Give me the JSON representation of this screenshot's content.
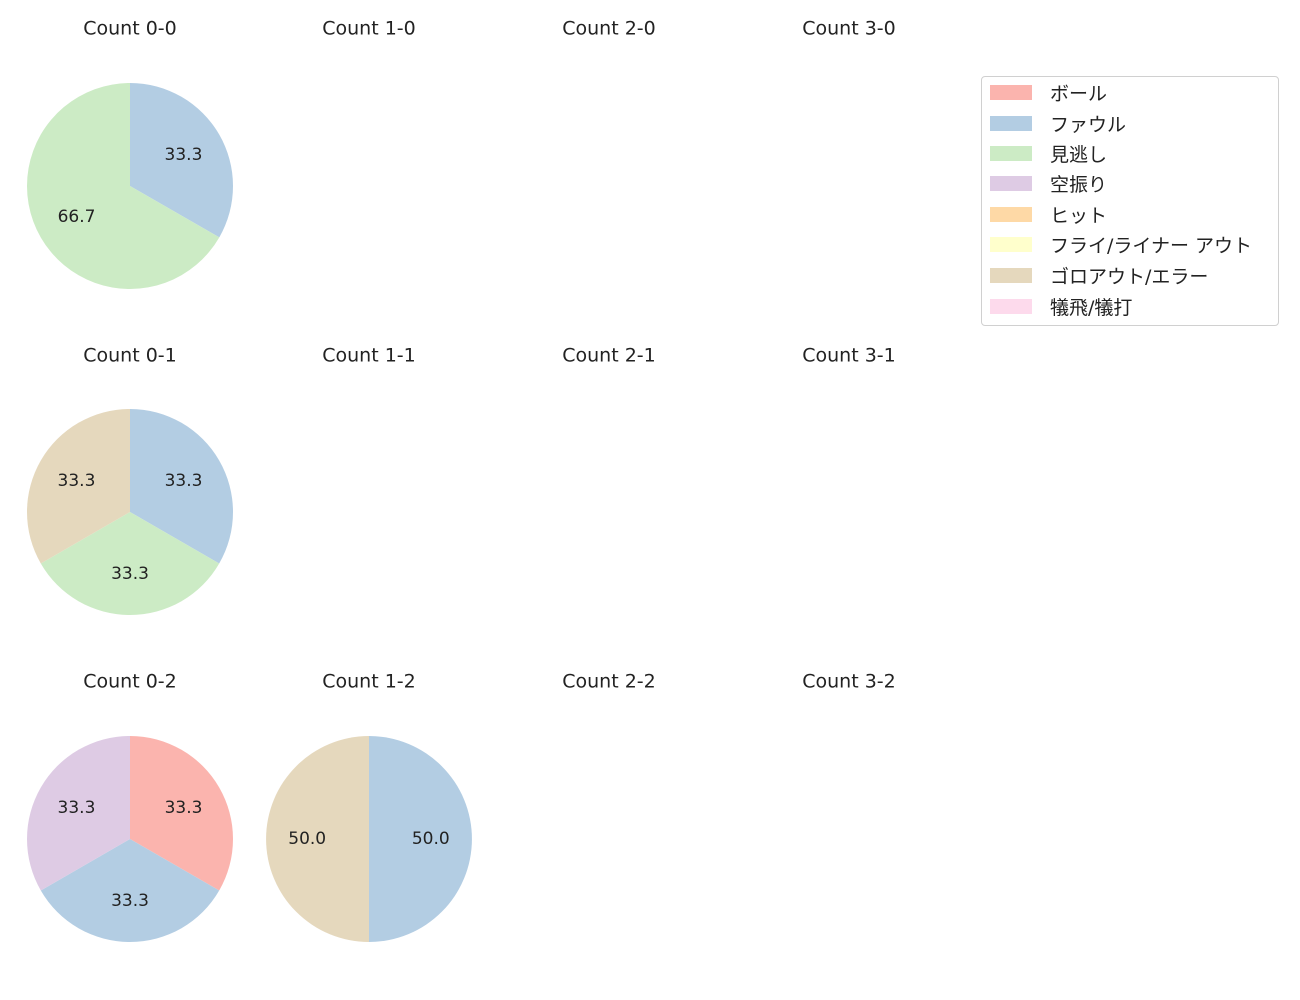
{
  "chart_data": {
    "type": "pie",
    "legend_position": "top-right",
    "legend": [
      {
        "label": "ボール",
        "color": "#fbb4ae"
      },
      {
        "label": "ファウル",
        "color": "#b3cde3"
      },
      {
        "label": "見逃し",
        "color": "#ccebc5"
      },
      {
        "label": "空振り",
        "color": "#decbe4"
      },
      {
        "label": "ヒット",
        "color": "#fed9a6"
      },
      {
        "label": "フライ/ライナー アウト",
        "color": "#ffffcc"
      },
      {
        "label": "ゴロアウト/エラー",
        "color": "#e5d8bd"
      },
      {
        "label": "犠飛/犠打",
        "color": "#fddaec"
      }
    ],
    "subplots": [
      {
        "title": "Count 0-0",
        "slices": [
          {
            "category": "ファウル",
            "value": 33.3
          },
          {
            "category": "見逃し",
            "value": 66.7
          }
        ]
      },
      {
        "title": "Count 1-0",
        "slices": []
      },
      {
        "title": "Count 2-0",
        "slices": []
      },
      {
        "title": "Count 3-0",
        "slices": []
      },
      {
        "title": "Count 0-1",
        "slices": [
          {
            "category": "ファウル",
            "value": 33.3
          },
          {
            "category": "見逃し",
            "value": 33.3
          },
          {
            "category": "ゴロアウト/エラー",
            "value": 33.3
          }
        ]
      },
      {
        "title": "Count 1-1",
        "slices": []
      },
      {
        "title": "Count 2-1",
        "slices": []
      },
      {
        "title": "Count 3-1",
        "slices": []
      },
      {
        "title": "Count 0-2",
        "slices": [
          {
            "category": "ボール",
            "value": 33.3
          },
          {
            "category": "ファウル",
            "value": 33.3
          },
          {
            "category": "空振り",
            "value": 33.3
          }
        ]
      },
      {
        "title": "Count 1-2",
        "slices": [
          {
            "category": "ファウル",
            "value": 50.0
          },
          {
            "category": "ゴロアウト/エラー",
            "value": 50.0
          }
        ]
      },
      {
        "title": "Count 2-2",
        "slices": []
      },
      {
        "title": "Count 3-2",
        "slices": []
      }
    ]
  }
}
